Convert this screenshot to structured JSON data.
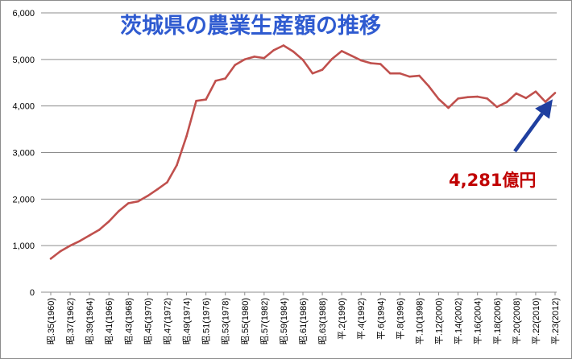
{
  "chart_data": {
    "type": "line",
    "title": "茨城県の農業生産額の推移",
    "xlabel": "",
    "ylabel": "",
    "ylim": [
      0,
      6000
    ],
    "yticks": [
      0,
      1000,
      2000,
      3000,
      4000,
      5000,
      6000
    ],
    "ytick_labels": [
      "0",
      "1,000",
      "2,000",
      "3,000",
      "4,000",
      "5,000",
      "6,000"
    ],
    "grid": true,
    "legend": "none",
    "line_color": "#c0504d",
    "annotation": {
      "text": "4,281億円",
      "color": "#c00000",
      "arrow_color": "#1f3fa0"
    },
    "x_tick_labels": [
      "昭.35(1960)",
      "昭.37(1962)",
      "昭.39(1964)",
      "昭.41(1966)",
      "昭.43(1968)",
      "昭.45(1970)",
      "昭.47(1972)",
      "昭.49(1974)",
      "昭.51(1976)",
      "昭.53(1978)",
      "昭.55(1980)",
      "昭.57(1982)",
      "昭.59(1984)",
      "昭.61(1986)",
      "昭.63(1988)",
      "平.2(1990)",
      "平.4(1992)",
      "平.6(1994)",
      "平.8(1996)",
      "平.10(1998)",
      "平.12(2000)",
      "平.14(2002)",
      "平.16(2004)",
      "平.18(2006)",
      "平.20(2008)",
      "平.22(2010)",
      "平.23(2012)"
    ],
    "x": [
      1960,
      1961,
      1962,
      1963,
      1964,
      1965,
      1966,
      1967,
      1968,
      1969,
      1970,
      1971,
      1972,
      1973,
      1974,
      1975,
      1976,
      1977,
      1978,
      1979,
      1980,
      1981,
      1982,
      1983,
      1984,
      1985,
      1986,
      1987,
      1988,
      1989,
      1990,
      1991,
      1992,
      1993,
      1994,
      1995,
      1996,
      1997,
      1998,
      1999,
      2000,
      2001,
      2002,
      2003,
      2004,
      2005,
      2006,
      2007,
      2008,
      2009,
      2010,
      2011,
      2012
    ],
    "values": [
      720,
      880,
      1000,
      1100,
      1220,
      1340,
      1520,
      1740,
      1910,
      1950,
      2070,
      2210,
      2360,
      2730,
      3350,
      4110,
      4140,
      4540,
      4590,
      4880,
      5000,
      5060,
      5030,
      5200,
      5300,
      5170,
      4990,
      4700,
      4780,
      5010,
      5180,
      5080,
      4980,
      4920,
      4900,
      4700,
      4700,
      4630,
      4650,
      4420,
      4150,
      3960,
      4160,
      4190,
      4200,
      4160,
      3980,
      4080,
      4270,
      4170,
      4310,
      4090,
      4281
    ]
  }
}
